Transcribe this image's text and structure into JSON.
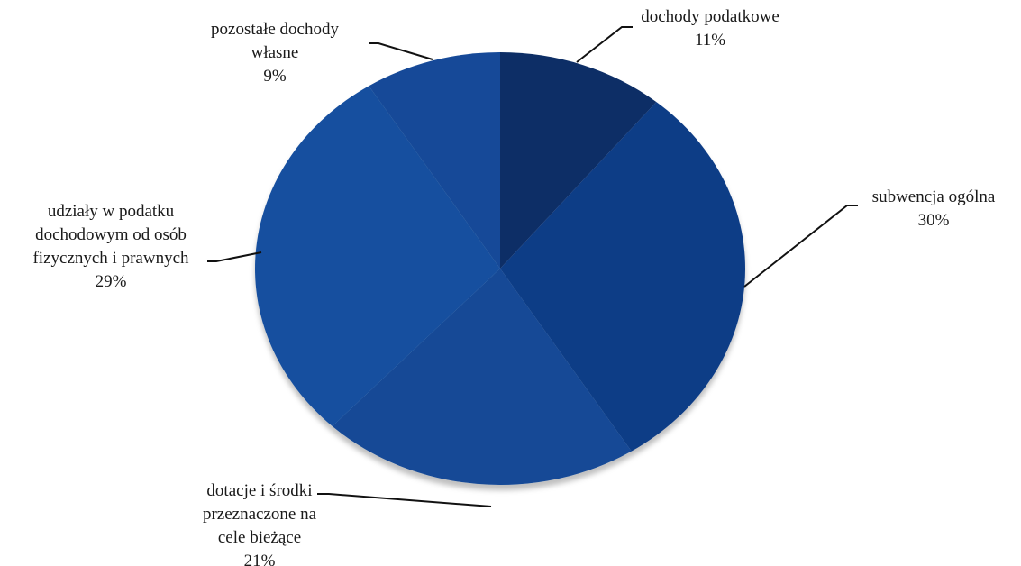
{
  "chart_data": {
    "type": "pie",
    "start": "top",
    "direction": "clockwise",
    "legend": "none",
    "slices": [
      {
        "label_lines": [
          "dochody podatkowe"
        ],
        "percent_label": "11%",
        "value": 11,
        "color": "#0b2f66"
      },
      {
        "label_lines": [
          "subwencja ogólna"
        ],
        "percent_label": "30%",
        "value": 30,
        "color": "#0d3c86"
      },
      {
        "label_lines": [
          "dotacje i środki",
          "przeznaczone na",
          "cele bieżące"
        ],
        "percent_label": "21%",
        "value": 21,
        "color": "#124896"
      },
      {
        "label_lines": [
          "udziały w podatku",
          "dochodowym od osób",
          "fizycznych  i prawnych"
        ],
        "percent_label": "29%",
        "value": 29,
        "color": "#154f9f"
      },
      {
        "label_lines": [
          "pozostałe dochody",
          "własne"
        ],
        "percent_label": "9%",
        "value": 9,
        "color": "#134a98"
      }
    ]
  }
}
